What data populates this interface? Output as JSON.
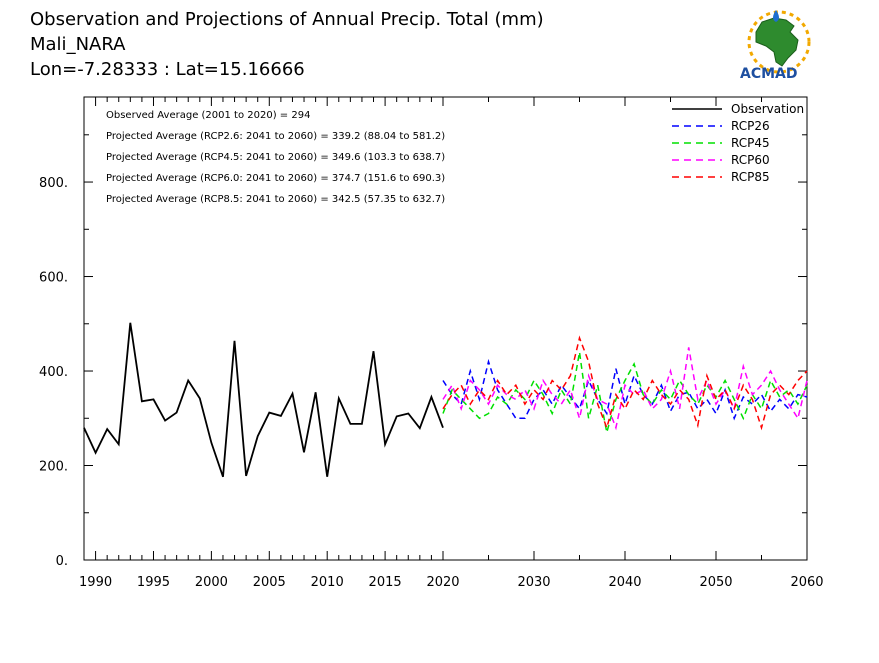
{
  "header": {
    "title_lines": [
      "Observation and Projections of Annual Precip. Total (mm)",
      "Mali_NARA",
      "Lon=-7.28333 : Lat=15.16666"
    ]
  },
  "logo": {
    "text": "ACMAD"
  },
  "chart_data": {
    "type": "line",
    "title": "Observation and Projections of Annual Precip. Total (mm)",
    "subtitle": [
      "Mali_NARA",
      "Lon=-7.28333 : Lat=15.16666"
    ],
    "xlabel": "",
    "ylabel": "",
    "xlim": [
      1989,
      2060
    ],
    "ylim": [
      0,
      980
    ],
    "grid": false,
    "legend_position": "top-right",
    "x_tick_labels": [
      "1990",
      "1995",
      "2000",
      "2005",
      "2010",
      "2015",
      "2020",
      "2030",
      "2040",
      "2050",
      "2060"
    ],
    "x_tick_values": [
      1990,
      1995,
      2000,
      2005,
      2010,
      2015,
      2020,
      2030,
      2040,
      2050,
      2060
    ],
    "y_tick_labels": [
      "0.",
      "200.",
      "400.",
      "600.",
      "800."
    ],
    "y_tick_values": [
      0,
      200,
      400,
      600,
      800
    ],
    "annotations": [
      "Observed Average (2001 to 2020) = 294",
      "Projected Average (RCP2.6: 2041 to 2060) = 339.2 (88.04 to 581.2)",
      "Projected Average (RCP4.5: 2041 to 2060) = 349.6 (103.3 to 638.7)",
      "Projected Average (RCP6.0: 2041 to 2060) = 374.7 (151.6 to 690.3)",
      "Projected Average (RCP8.5: 2041 to 2060) = 342.5 (57.35 to 632.7)"
    ],
    "series": [
      {
        "name": "Observation",
        "color": "#000000",
        "dash": "solid",
        "x": [
          1989,
          1990,
          1991,
          1992,
          1993,
          1994,
          1995,
          1996,
          1997,
          1998,
          1999,
          2000,
          2001,
          2002,
          2003,
          2004,
          2005,
          2006,
          2007,
          2008,
          2009,
          2010,
          2011,
          2012,
          2013,
          2014,
          2015,
          2016,
          2017,
          2018,
          2019,
          2020
        ],
        "values": [
          280,
          227,
          277,
          245,
          502,
          336,
          340,
          295,
          312,
          380,
          342,
          248,
          176,
          464,
          178,
          262,
          312,
          305,
          352,
          228,
          355,
          176,
          342,
          288,
          288,
          442,
          245,
          304,
          310,
          279,
          345,
          280
        ]
      },
      {
        "name": "RCP26",
        "color": "#0000ff",
        "dash": "dashed",
        "x": [
          2020,
          2021,
          2022,
          2023,
          2024,
          2025,
          2026,
          2027,
          2028,
          2029,
          2030,
          2031,
          2032,
          2033,
          2034,
          2035,
          2036,
          2037,
          2038,
          2039,
          2040,
          2041,
          2042,
          2043,
          2044,
          2045,
          2046,
          2047,
          2048,
          2049,
          2050,
          2051,
          2052,
          2053,
          2054,
          2055,
          2056,
          2057,
          2058,
          2059,
          2060
        ],
        "values": [
          380,
          350,
          330,
          400,
          340,
          420,
          360,
          330,
          300,
          300,
          340,
          360,
          330,
          370,
          345,
          320,
          380,
          340,
          310,
          405,
          330,
          390,
          350,
          330,
          370,
          315,
          350,
          355,
          320,
          340,
          310,
          360,
          300,
          345,
          330,
          350,
          315,
          340,
          320,
          350,
          345
        ]
      },
      {
        "name": "RCP45",
        "color": "#00e000",
        "dash": "dashed",
        "x": [
          2020,
          2021,
          2022,
          2023,
          2024,
          2025,
          2026,
          2027,
          2028,
          2029,
          2030,
          2031,
          2032,
          2033,
          2034,
          2035,
          2036,
          2037,
          2038,
          2039,
          2040,
          2041,
          2042,
          2043,
          2044,
          2045,
          2046,
          2047,
          2048,
          2049,
          2050,
          2051,
          2052,
          2053,
          2054,
          2055,
          2056,
          2057,
          2058,
          2059,
          2060
        ],
        "values": [
          310,
          360,
          340,
          320,
          300,
          310,
          345,
          330,
          360,
          340,
          380,
          350,
          310,
          360,
          330,
          440,
          300,
          370,
          270,
          340,
          380,
          415,
          350,
          330,
          360,
          340,
          380,
          350,
          330,
          370,
          345,
          380,
          340,
          300,
          350,
          320,
          380,
          345,
          360,
          330,
          370
        ]
      },
      {
        "name": "RCP60",
        "color": "#ff00ff",
        "dash": "dashed",
        "x": [
          2020,
          2021,
          2022,
          2023,
          2024,
          2025,
          2026,
          2027,
          2028,
          2029,
          2030,
          2031,
          2032,
          2033,
          2034,
          2035,
          2036,
          2037,
          2038,
          2039,
          2040,
          2041,
          2042,
          2043,
          2044,
          2045,
          2046,
          2047,
          2048,
          2049,
          2050,
          2051,
          2052,
          2053,
          2054,
          2055,
          2056,
          2057,
          2058,
          2059,
          2060
        ],
        "values": [
          340,
          370,
          320,
          380,
          360,
          330,
          370,
          350,
          340,
          360,
          320,
          380,
          350,
          330,
          360,
          300,
          390,
          340,
          330,
          280,
          370,
          350,
          360,
          320,
          340,
          400,
          320,
          450,
          340,
          380,
          330,
          360,
          320,
          410,
          350,
          370,
          400,
          360,
          330,
          300,
          380
        ]
      },
      {
        "name": "RCP85",
        "color": "#ff0000",
        "dash": "dashed",
        "x": [
          2020,
          2021,
          2022,
          2023,
          2024,
          2025,
          2026,
          2027,
          2028,
          2029,
          2030,
          2031,
          2032,
          2033,
          2034,
          2035,
          2036,
          2037,
          2038,
          2039,
          2040,
          2041,
          2042,
          2043,
          2044,
          2045,
          2046,
          2047,
          2048,
          2049,
          2050,
          2051,
          2052,
          2053,
          2054,
          2055,
          2056,
          2057,
          2058,
          2059,
          2060
        ],
        "values": [
          320,
          350,
          370,
          330,
          360,
          340,
          380,
          350,
          370,
          330,
          360,
          340,
          380,
          360,
          390,
          470,
          420,
          330,
          280,
          350,
          320,
          360,
          340,
          380,
          350,
          330,
          360,
          340,
          285,
          390,
          340,
          360,
          320,
          370,
          340,
          280,
          350,
          370,
          350,
          380,
          400
        ]
      }
    ]
  }
}
